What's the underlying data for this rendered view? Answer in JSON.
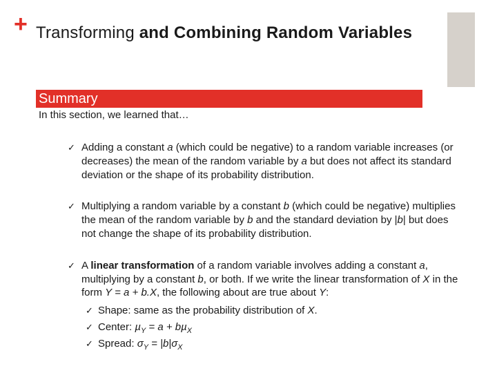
{
  "colors": {
    "accent_box": "#d6d1cb",
    "plus": "#e23028",
    "title": "#1a1a1a",
    "summary_bg": "#e23028",
    "summary_text": "#ffffff",
    "body_text": "#1a1a1a",
    "check": "#1a1a1a",
    "background": "#ffffff"
  },
  "typography": {
    "title_fontsize": 24,
    "plus_fontsize": 34,
    "summary_fontsize": 20,
    "body_fontsize": 15,
    "sub_check_fontsize": 13
  },
  "plus_symbol": "+",
  "title_plain": "Transforming",
  "title_bold": " and Combining Random Variables",
  "summary_label": "Summary",
  "subhead": "In this section, we learned that…",
  "check_glyph": "✓",
  "bullets": [
    {
      "pre": "Adding a constant ",
      "i1": "a",
      "mid": " (which could be negative) to a random variable increases (or decreases) the mean of the random variable by ",
      "i2": "a",
      "post": " but does not affect its standard deviation or the shape of its probability distribution."
    },
    {
      "pre": "Multiplying a random variable by a constant ",
      "i1": "b",
      "mid": " (which could be negative) multiplies  the mean of the random variable by ",
      "i2": "b",
      "mid2": " and the standard deviation by |",
      "i3": "b",
      "post": "| but does not change the shape of its probability distribution."
    },
    {
      "pre": "A ",
      "b1": "linear transformation",
      "mid": " of a random variable involves adding a constant ",
      "i1": "a",
      "mid2": ", multiplying by a constant ",
      "i2": "b",
      "mid3": ", or both.  If we write the linear transformation of ",
      "i3": "X",
      "mid4": " in the form ",
      "i4": "Y = a + b.X",
      "post": ", the following about are true about ",
      "i5": "Y",
      "post2": ":",
      "subs": [
        {
          "label": "Shape:",
          "text": " same as the probability distribution of ",
          "i": "X",
          "tail": "."
        },
        {
          "label": "Center:",
          "eq_pre": "µ",
          "eq_sub1": "Y",
          "eq_mid": " = a + bµ",
          "eq_sub2": "X"
        },
        {
          "label": "Spread:",
          "eq_pre": "σ",
          "eq_sub1": "Y",
          "eq_mid": " = |b|σ",
          "eq_sub2": "X"
        }
      ]
    }
  ]
}
